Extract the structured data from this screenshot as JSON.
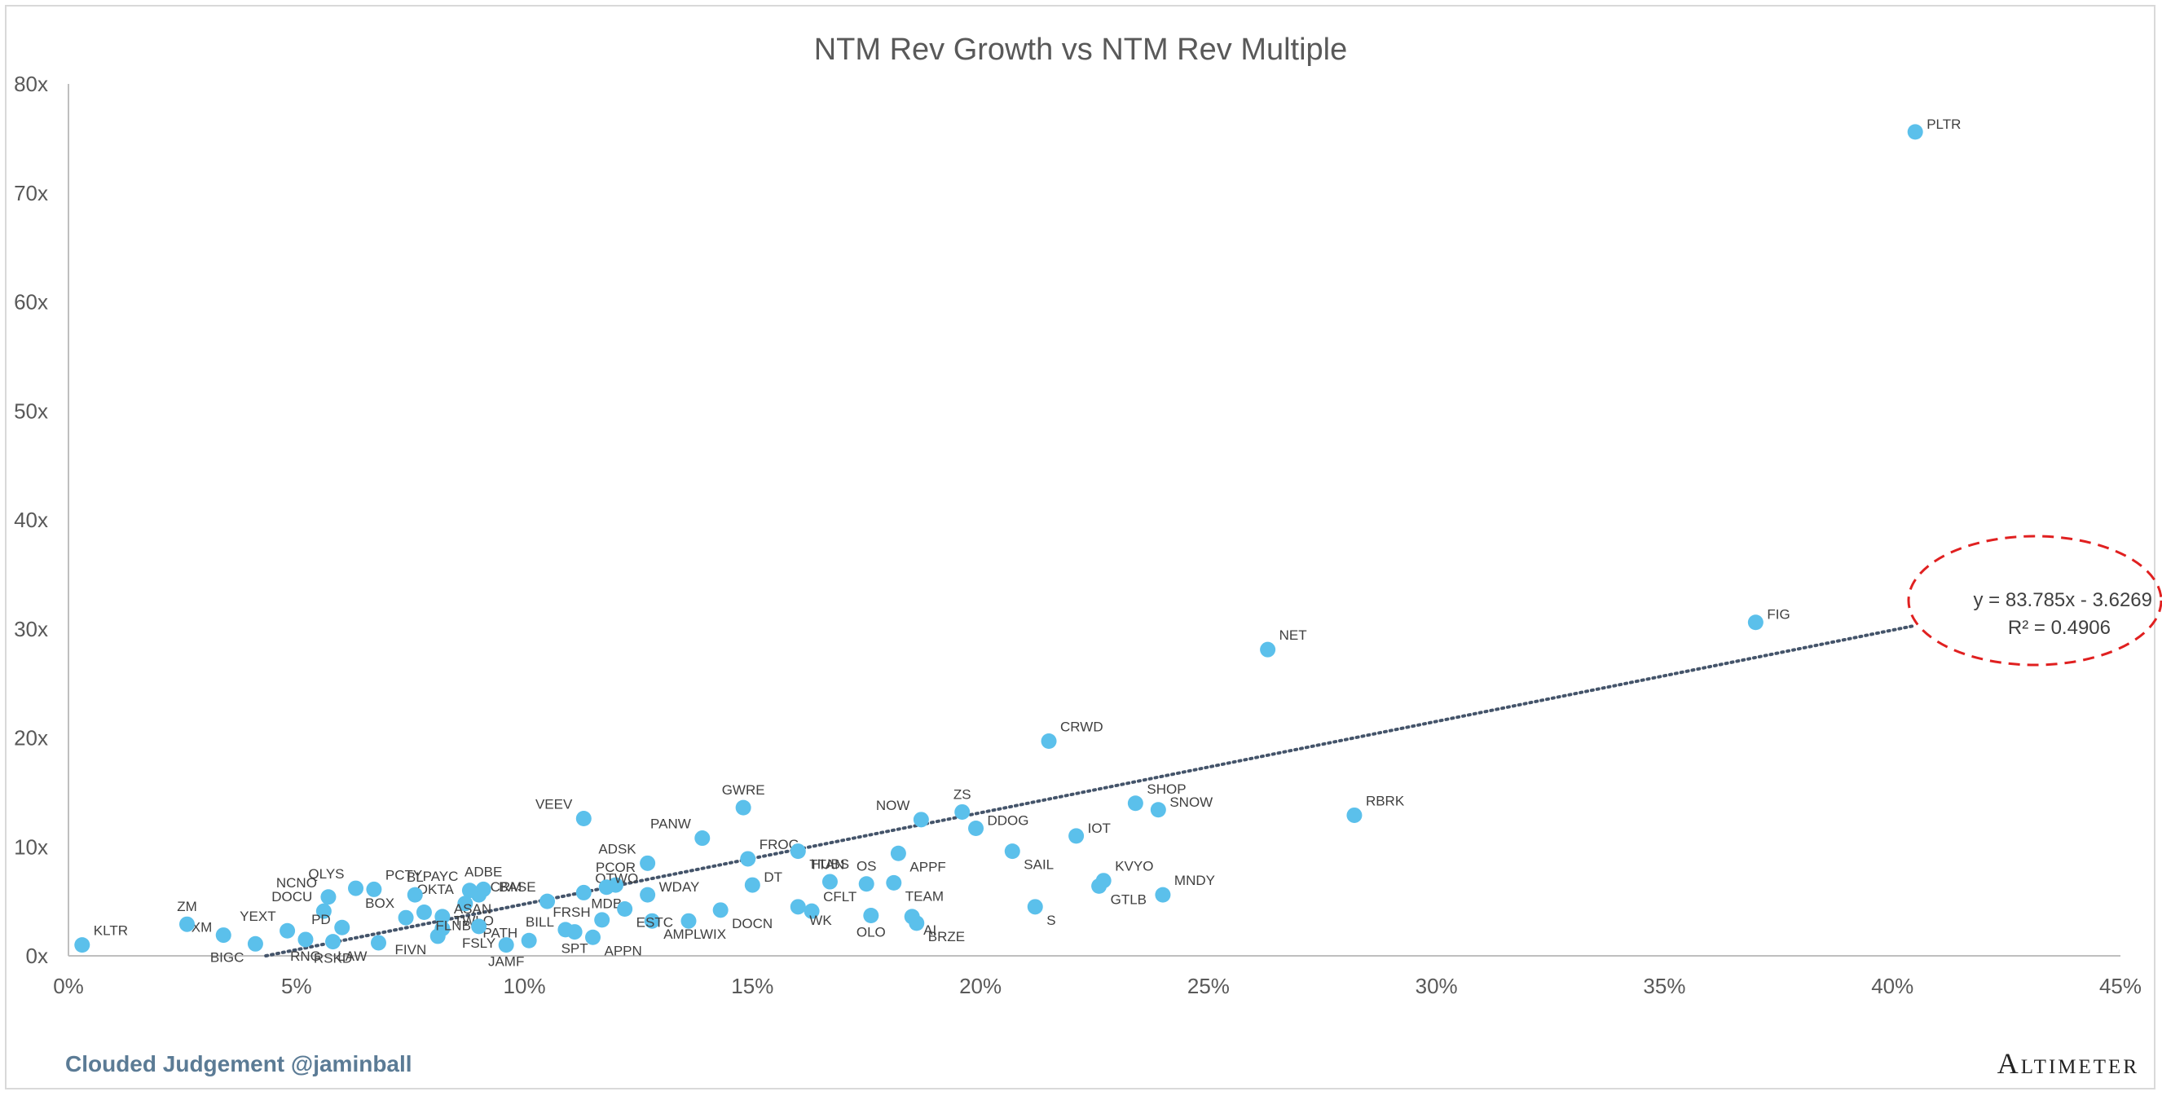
{
  "chart_data": {
    "type": "scatter",
    "title": "NTM Rev Growth vs NTM Rev Multiple",
    "xlabel": "",
    "ylabel": "",
    "xlim": [
      0,
      0.45
    ],
    "ylim": [
      0,
      80
    ],
    "x_ticks": [
      0,
      0.05,
      0.1,
      0.15,
      0.2,
      0.25,
      0.3,
      0.35,
      0.4,
      0.45
    ],
    "x_tick_labels": [
      "0%",
      "5%",
      "10%",
      "15%",
      "20%",
      "25%",
      "30%",
      "35%",
      "40%",
      "45%"
    ],
    "y_ticks": [
      0,
      10,
      20,
      30,
      40,
      50,
      60,
      70,
      80
    ],
    "y_tick_labels": [
      "0x",
      "10x",
      "20x",
      "30x",
      "40x",
      "50x",
      "60x",
      "70x",
      "80x"
    ],
    "trendline": {
      "slope": 83.785,
      "intercept": -3.6269,
      "equation": "y = 83.785x - 3.6269",
      "r2": "R² = 0.4906"
    },
    "points": [
      {
        "label": "PLTR",
        "x": 0.405,
        "y": 75.6,
        "pos": "r"
      },
      {
        "label": "FIG",
        "x": 0.37,
        "y": 30.6,
        "pos": "r"
      },
      {
        "label": "NET",
        "x": 0.263,
        "y": 28.1,
        "pos": "tr"
      },
      {
        "label": "RBRK",
        "x": 0.282,
        "y": 12.9,
        "pos": "tr"
      },
      {
        "label": "CRWD",
        "x": 0.215,
        "y": 19.7,
        "pos": "tr"
      },
      {
        "label": "SHOP",
        "x": 0.234,
        "y": 14.0,
        "pos": "tr"
      },
      {
        "label": "SNOW",
        "x": 0.239,
        "y": 13.4,
        "pos": "r"
      },
      {
        "label": "IOT",
        "x": 0.221,
        "y": 11.0,
        "pos": "r"
      },
      {
        "label": "ZS",
        "x": 0.196,
        "y": 13.2,
        "pos": "t"
      },
      {
        "label": "NOW",
        "x": 0.187,
        "y": 12.5,
        "pos": "tl"
      },
      {
        "label": "DDOG",
        "x": 0.199,
        "y": 11.7,
        "pos": "r"
      },
      {
        "label": "SAIL",
        "x": 0.207,
        "y": 9.6,
        "pos": "br"
      },
      {
        "label": "KVYO",
        "x": 0.227,
        "y": 6.9,
        "pos": "tr"
      },
      {
        "label": "GTLB",
        "x": 0.226,
        "y": 6.4,
        "pos": "br"
      },
      {
        "label": "MNDY",
        "x": 0.24,
        "y": 5.6,
        "pos": "tr"
      },
      {
        "label": "S",
        "x": 0.212,
        "y": 4.5,
        "pos": "br"
      },
      {
        "label": "GWRE",
        "x": 0.148,
        "y": 13.6,
        "pos": "t"
      },
      {
        "label": "PANW",
        "x": 0.139,
        "y": 10.8,
        "pos": "tl"
      },
      {
        "label": "FROG",
        "x": 0.149,
        "y": 8.9,
        "pos": "tr"
      },
      {
        "label": "TTAN",
        "x": 0.16,
        "y": 9.6,
        "pos": "br"
      },
      {
        "label": "APPF",
        "x": 0.182,
        "y": 9.4,
        "pos": "br"
      },
      {
        "label": "DT",
        "x": 0.15,
        "y": 6.5,
        "pos": "r"
      },
      {
        "label": "HUBS",
        "x": 0.167,
        "y": 6.8,
        "pos": "t"
      },
      {
        "label": "OS",
        "x": 0.175,
        "y": 6.6,
        "pos": "t"
      },
      {
        "label": "TEAM",
        "x": 0.181,
        "y": 6.7,
        "pos": "br"
      },
      {
        "label": "CFLT",
        "x": 0.163,
        "y": 4.1,
        "pos": "tr"
      },
      {
        "label": "WK",
        "x": 0.16,
        "y": 4.5,
        "pos": "br"
      },
      {
        "label": "OLO",
        "x": 0.176,
        "y": 3.7,
        "pos": "b"
      },
      {
        "label": "AI",
        "x": 0.185,
        "y": 3.6,
        "pos": "br"
      },
      {
        "label": "BRZE",
        "x": 0.186,
        "y": 3.0,
        "pos": "br"
      },
      {
        "label": "DOCN",
        "x": 0.143,
        "y": 4.2,
        "pos": "br"
      },
      {
        "label": "WIX",
        "x": 0.136,
        "y": 3.2,
        "pos": "br"
      },
      {
        "label": "AMPL",
        "x": 0.128,
        "y": 3.2,
        "pos": "br"
      },
      {
        "label": "APPN",
        "x": 0.115,
        "y": 1.7,
        "pos": "br"
      },
      {
        "label": "VEEV",
        "x": 0.113,
        "y": 12.6,
        "pos": "tl"
      },
      {
        "label": "ADSK",
        "x": 0.127,
        "y": 8.5,
        "pos": "tl"
      },
      {
        "label": "PCOR",
        "x": 0.12,
        "y": 6.5,
        "pos": "t"
      },
      {
        "label": "QTWO",
        "x": 0.113,
        "y": 5.8,
        "pos": "tr"
      },
      {
        "label": "WDAY",
        "x": 0.127,
        "y": 5.6,
        "pos": "r"
      },
      {
        "label": "MDB",
        "x": 0.118,
        "y": 6.3,
        "pos": "b"
      },
      {
        "label": "ESTC",
        "x": 0.122,
        "y": 4.3,
        "pos": "br"
      },
      {
        "label": "FRSH",
        "x": 0.117,
        "y": 3.3,
        "pos": "l"
      },
      {
        "label": "BILL",
        "x": 0.109,
        "y": 2.4,
        "pos": "l"
      },
      {
        "label": "SPT",
        "x": 0.111,
        "y": 2.2,
        "pos": "b"
      },
      {
        "label": "BASE",
        "x": 0.105,
        "y": 5.0,
        "pos": "tl"
      },
      {
        "label": "PATH",
        "x": 0.101,
        "y": 1.4,
        "pos": "l"
      },
      {
        "label": "JAMF",
        "x": 0.096,
        "y": 1.0,
        "pos": "b"
      },
      {
        "label": "ADBE",
        "x": 0.091,
        "y": 6.1,
        "pos": "t"
      },
      {
        "label": "CRM",
        "x": 0.09,
        "y": 5.6,
        "pos": "r"
      },
      {
        "label": "PAYC",
        "x": 0.088,
        "y": 6.0,
        "pos": "tl"
      },
      {
        "label": "OKTA",
        "x": 0.087,
        "y": 4.8,
        "pos": "tl"
      },
      {
        "label": "BL",
        "x": 0.076,
        "y": 5.6,
        "pos": "t"
      },
      {
        "label": "ASAN",
        "x": 0.082,
        "y": 3.6,
        "pos": "r"
      },
      {
        "label": "TWLO",
        "x": 0.082,
        "y": 2.5,
        "pos": "r"
      },
      {
        "label": "FSLY",
        "x": 0.09,
        "y": 2.7,
        "pos": "b"
      },
      {
        "label": "FIVN",
        "x": 0.081,
        "y": 1.8,
        "pos": "bl"
      },
      {
        "label": "FLNB",
        "x": 0.078,
        "y": 4.0,
        "pos": "br"
      },
      {
        "label": "BOX",
        "x": 0.074,
        "y": 3.5,
        "pos": "tl"
      },
      {
        "label": "PCTY",
        "x": 0.067,
        "y": 6.1,
        "pos": "tr"
      },
      {
        "label": "QLYS",
        "x": 0.063,
        "y": 6.2,
        "pos": "tl"
      },
      {
        "label": "LAW",
        "x": 0.068,
        "y": 1.2,
        "pos": "bl"
      },
      {
        "label": "RSKD",
        "x": 0.058,
        "y": 1.3,
        "pos": "b"
      },
      {
        "label": "NCNO",
        "x": 0.057,
        "y": 5.4,
        "pos": "tl"
      },
      {
        "label": "DOCU",
        "x": 0.056,
        "y": 4.1,
        "pos": "tl"
      },
      {
        "label": "PD",
        "x": 0.06,
        "y": 2.6,
        "pos": "l"
      },
      {
        "label": "RNG",
        "x": 0.052,
        "y": 1.5,
        "pos": "b"
      },
      {
        "label": "YEXT",
        "x": 0.048,
        "y": 2.3,
        "pos": "tl"
      },
      {
        "label": "BIGC",
        "x": 0.041,
        "y": 1.1,
        "pos": "bl"
      },
      {
        "label": "CXM",
        "x": 0.034,
        "y": 1.9,
        "pos": "l"
      },
      {
        "label": "ZM",
        "x": 0.026,
        "y": 2.9,
        "pos": "t"
      },
      {
        "label": "KLTR",
        "x": 0.003,
        "y": 1.0,
        "pos": "tr"
      }
    ]
  },
  "colors": {
    "point": "#5bc0eb",
    "trend": "#44546a",
    "ellipse": "#e02020",
    "axis": "#bfbfbf"
  },
  "footer": {
    "credit": "Clouded Judgement @jaminball",
    "brand": "Altimeter"
  }
}
